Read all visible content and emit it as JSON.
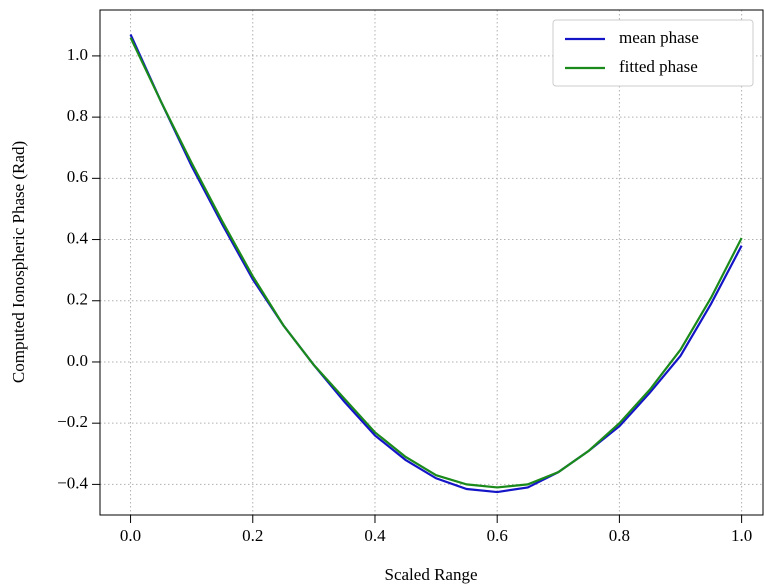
{
  "chart_data": {
    "type": "line",
    "xlabel": "Scaled Range",
    "ylabel": "Computed Ionospheric Phase (Rad)",
    "x": [
      0,
      0.05,
      0.1,
      0.15,
      0.2,
      0.25,
      0.3,
      0.35,
      0.4,
      0.45,
      0.5,
      0.55,
      0.6,
      0.65,
      0.7,
      0.75,
      0.8,
      0.85,
      0.9,
      0.95,
      1.0
    ],
    "series": [
      {
        "name": "mean phase",
        "color": "#1515c8",
        "values": [
          1.07,
          0.85,
          0.64,
          0.45,
          0.27,
          0.12,
          -0.01,
          -0.13,
          -0.24,
          -0.32,
          -0.38,
          -0.415,
          -0.425,
          -0.41,
          -0.36,
          -0.29,
          -0.21,
          -0.1,
          0.02,
          0.19,
          0.38
        ]
      },
      {
        "name": "fitted phase",
        "color": "#1a8a1a",
        "values": [
          1.06,
          0.85,
          0.65,
          0.46,
          0.28,
          0.12,
          -0.01,
          -0.12,
          -0.23,
          -0.31,
          -0.37,
          -0.4,
          -0.41,
          -0.4,
          -0.36,
          -0.29,
          -0.2,
          -0.09,
          0.04,
          0.21,
          0.405
        ]
      }
    ],
    "xlim": [
      -0.05,
      1.035
    ],
    "ylim": [
      -0.5,
      1.15
    ],
    "xticks": [
      {
        "value": 0,
        "label": "0.0"
      },
      0.2,
      0.4,
      0.6,
      0.8,
      {
        "value": 1,
        "label": "1.0"
      }
    ],
    "yticks": [
      {
        "value": -0.4,
        "label": "−0.4"
      },
      {
        "value": -0.2,
        "label": "−0.2"
      },
      {
        "value": 0,
        "label": "0.0"
      },
      0.2,
      0.4,
      0.6,
      0.8,
      {
        "value": 1,
        "label": "1.0"
      }
    ],
    "grid": true,
    "legend": "upper right"
  }
}
